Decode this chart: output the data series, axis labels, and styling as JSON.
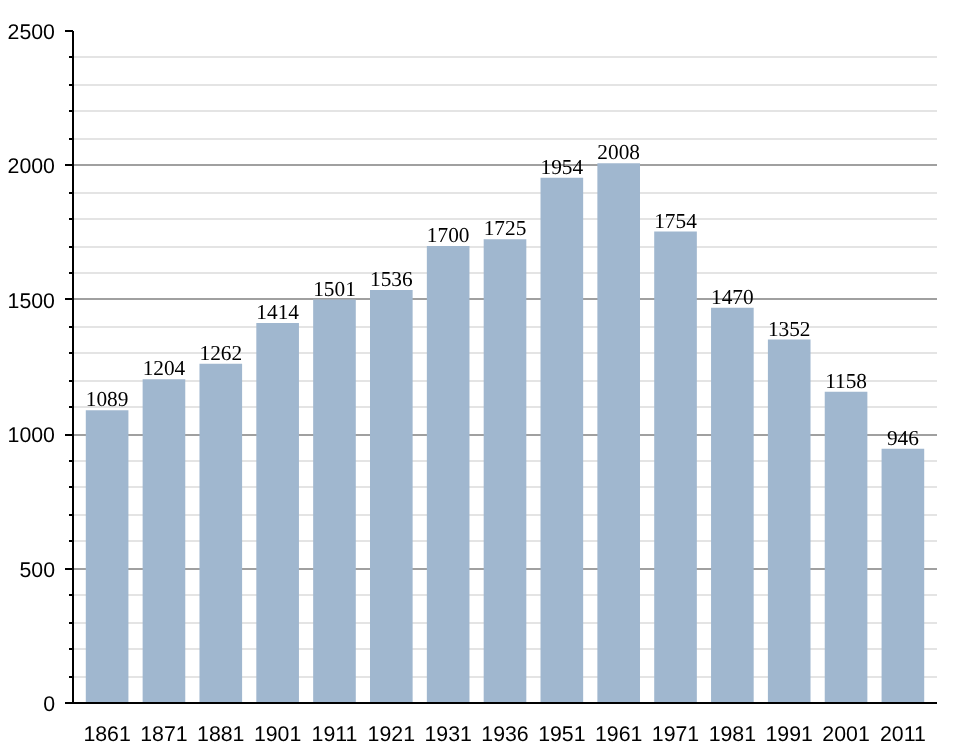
{
  "chart_data": {
    "type": "bar",
    "categories": [
      "1861",
      "1871",
      "1881",
      "1901",
      "1911",
      "1921",
      "1931",
      "1936",
      "1951",
      "1961",
      "1971",
      "1981",
      "1991",
      "2001",
      "2011"
    ],
    "values": [
      1089,
      1204,
      1262,
      1414,
      1501,
      1536,
      1700,
      1725,
      1954,
      2008,
      1754,
      1470,
      1352,
      1158,
      946
    ],
    "color": "#a0b7cf",
    "ylim": [
      0,
      2500
    ],
    "yticks": [
      0,
      500,
      1000,
      1500,
      2000,
      2500
    ],
    "grid": "y",
    "data_labels": true
  }
}
